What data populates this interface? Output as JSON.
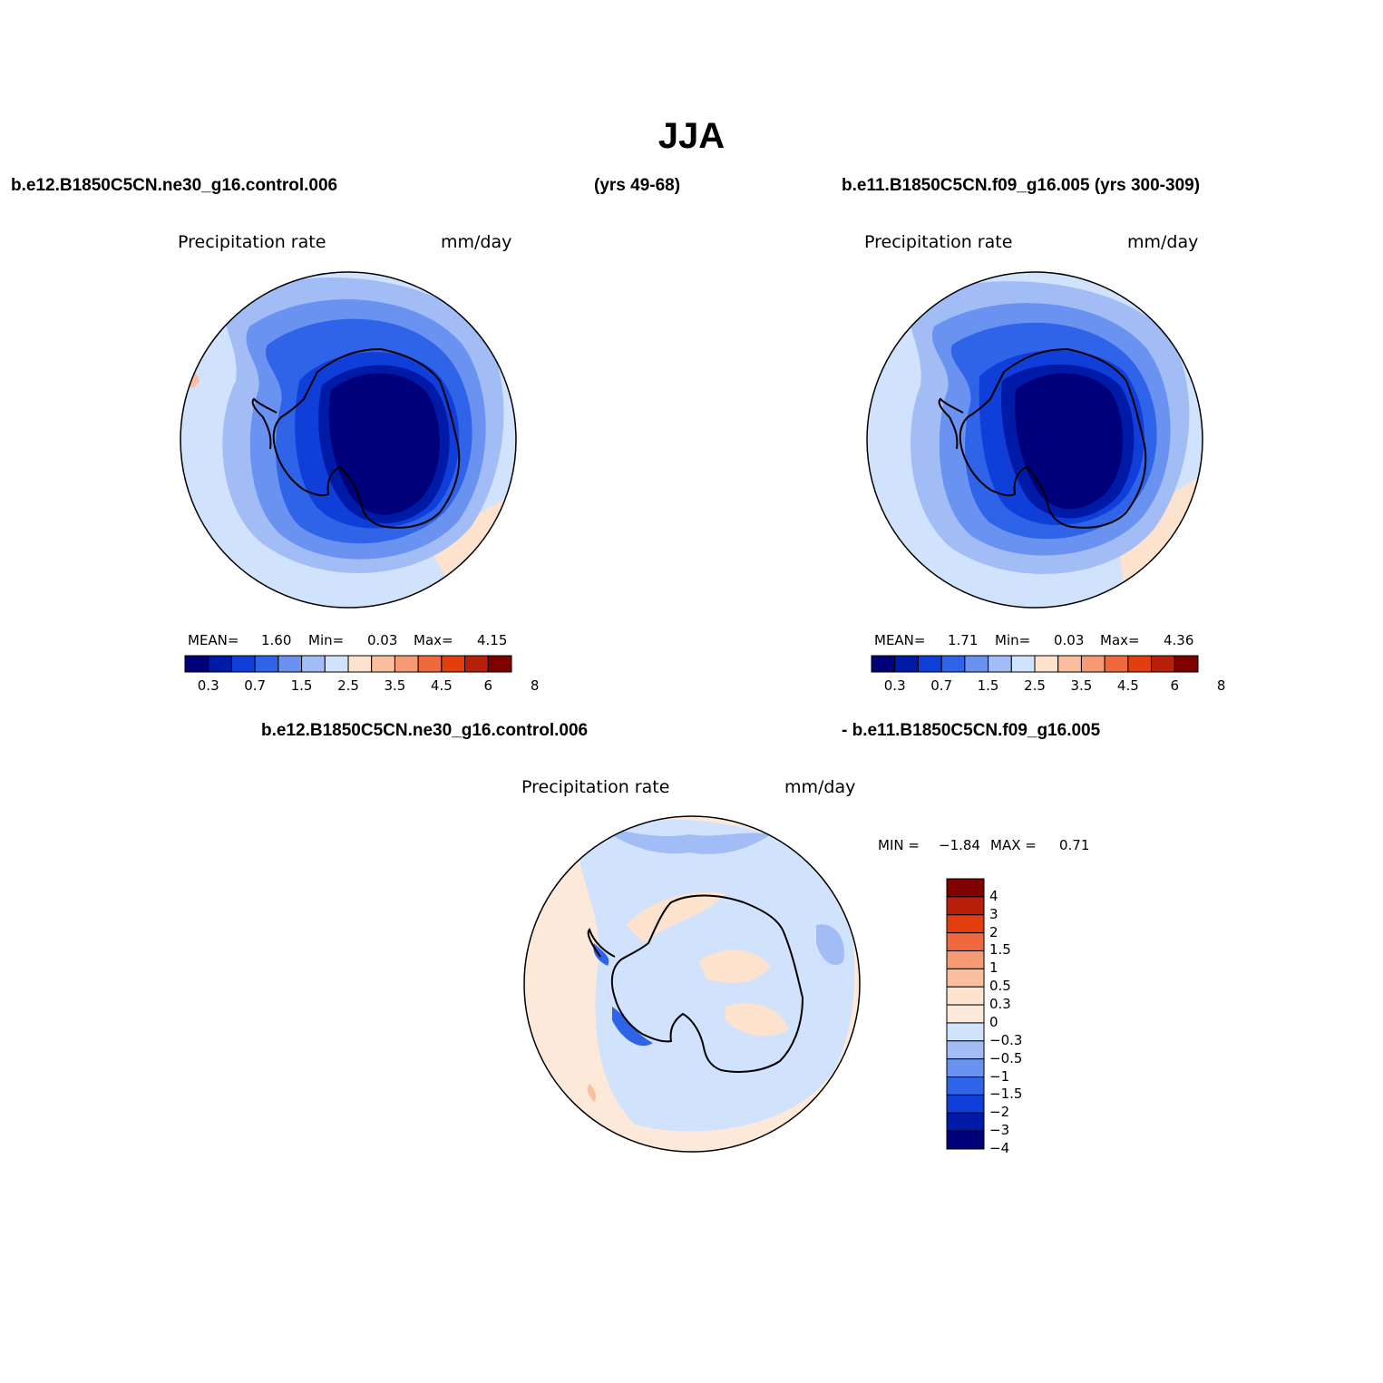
{
  "figure": {
    "title": "JJA",
    "left_case": "b.e12.B1850C5CN.ne30_g16.control.006",
    "left_years": "(yrs 49-68)",
    "right_case_label": "b.e11.B1850C5CN.f09_g16.005 (yrs 300-309)",
    "diff_case_a": "b.e12.B1850C5CN.ne30_g16.control.006",
    "diff_case_b": "- b.e11.B1850C5CN.f09_g16.005"
  },
  "panels": [
    {
      "variable": "Precipitation rate",
      "units": "mm/day",
      "mean_label": "MEAN=",
      "mean": "1.60",
      "min_label": "Min=",
      "min": "0.03",
      "max_label": "Max=",
      "max": "4.15"
    },
    {
      "variable": "Precipitation rate",
      "units": "mm/day",
      "mean_label": "MEAN=",
      "mean": "1.71",
      "min_label": "Min=",
      "min": "0.03",
      "max_label": "Max=",
      "max": "4.36"
    }
  ],
  "diff_panel": {
    "variable": "Precipitation rate",
    "units": "mm/day",
    "min_label": "MIN =",
    "min": "−1.84",
    "max_label": "MAX =",
    "max": "0.71"
  },
  "colorbar_levels": [
    "0.3",
    "0.7",
    "1.5",
    "2.5",
    "3.5",
    "4.5",
    "6",
    "8"
  ],
  "colorbar_colors": [
    "#00007a",
    "#001aa8",
    "#0f3ed8",
    "#3064e8",
    "#6a92f0",
    "#a2bcf6",
    "#d0e2fc",
    "#fde2cd",
    "#fbbfa0",
    "#f59a74",
    "#f0683e",
    "#e23e0e",
    "#b8200c",
    "#800000"
  ],
  "diff_levels": [
    "4",
    "3",
    "2",
    "1.5",
    "1",
    "0.5",
    "0.3",
    "0",
    "−0.3",
    "−0.5",
    "−1",
    "−1.5",
    "−2",
    "−3",
    "−4"
  ],
  "diff_colors": [
    "#800000",
    "#b8200c",
    "#e23e0e",
    "#f0683e",
    "#f59a74",
    "#fbbfa0",
    "#fde2cd",
    "#fde9d9",
    "#d0e2fc",
    "#a2bcf6",
    "#6a92f0",
    "#3064e8",
    "#0f3ed8",
    "#001aa8",
    "#00007a"
  ]
}
